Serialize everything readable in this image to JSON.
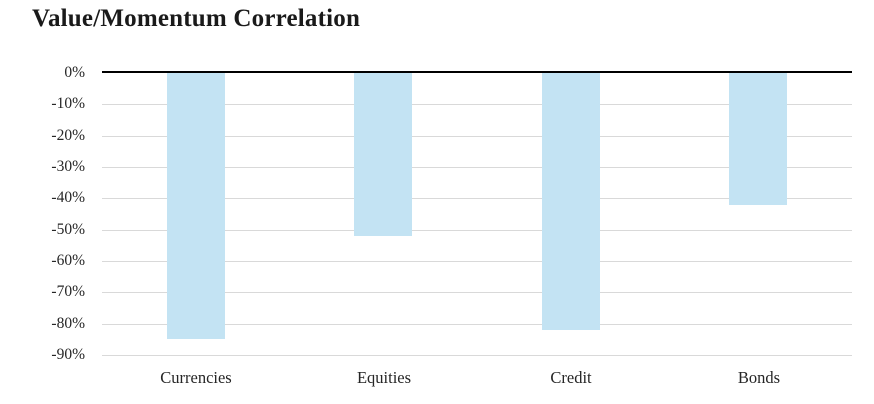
{
  "title": "Value/Momentum Correlation",
  "chart_data": {
    "type": "bar",
    "title": "Value/Momentum Correlation",
    "categories": [
      "Currencies",
      "Equities",
      "Credit",
      "Bonds"
    ],
    "values": [
      -85,
      -52,
      -82,
      -42
    ],
    "unit": "%",
    "xlabel": "",
    "ylabel": "",
    "ylim": [
      -90,
      0
    ],
    "yticks": [
      0,
      -10,
      -20,
      -30,
      -40,
      -50,
      -60,
      -70,
      -80,
      -90
    ],
    "ytick_labels": [
      "0%",
      "-10%",
      "-20%",
      "-30%",
      "-40%",
      "-50%",
      "-60%",
      "-70%",
      "-80%",
      "-90%"
    ],
    "grid": true,
    "legend": false,
    "colors": {
      "bar_fill": "#c3e3f3",
      "gridline": "#d9d9d9",
      "zero_axis_line": "#000000",
      "text": "#262626",
      "title_text": "#1a1a1a",
      "background": "#ffffff"
    }
  }
}
